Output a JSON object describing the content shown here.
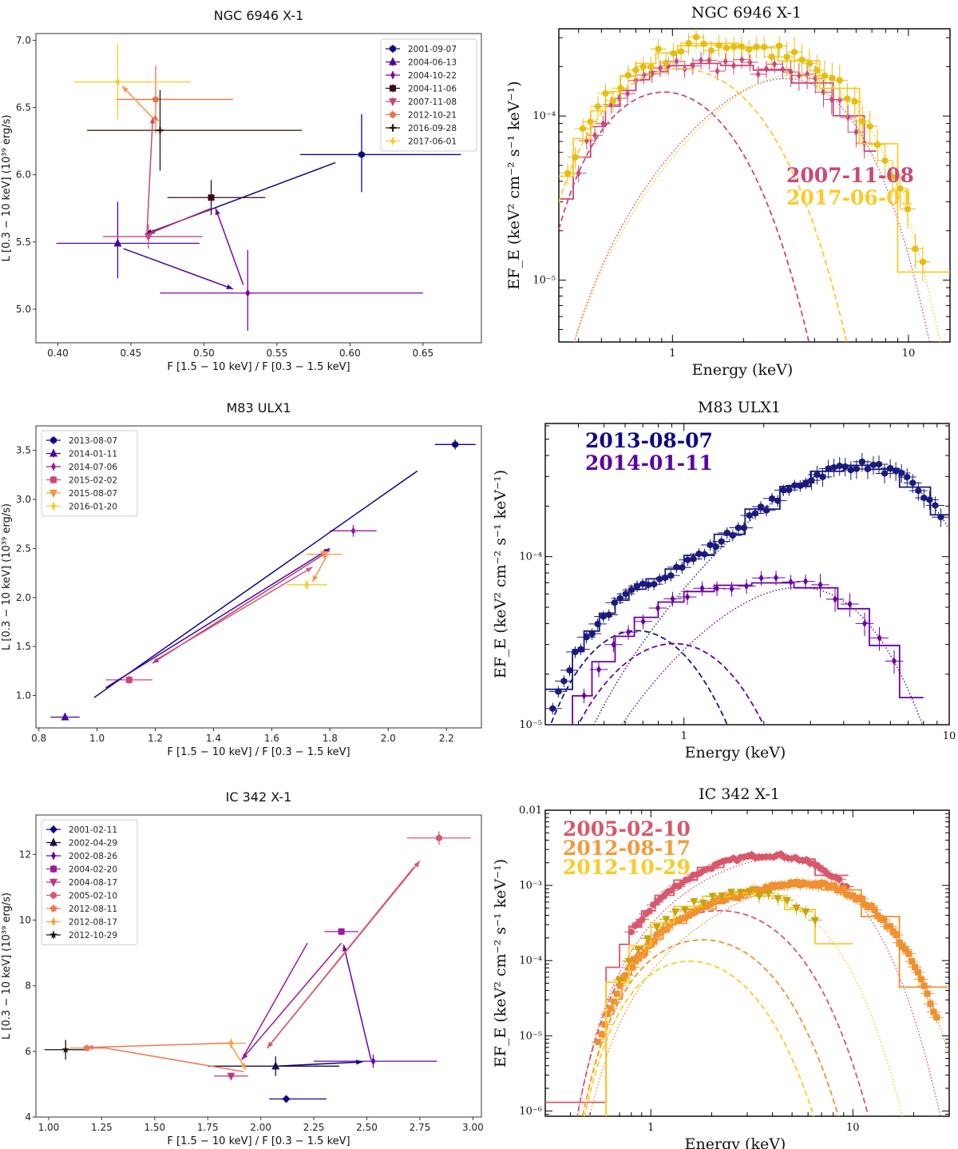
{
  "chart_data": [
    {
      "type": "scatter",
      "panel": "left-1",
      "title": "NGC 6946 X-1",
      "xlabel": "F [1.5 − 10 keV] / F [0.3 − 1.5 keV]",
      "ylabel": "L [0.3 − 10 keV] (10³⁹ erg/s)",
      "xlim": [
        0.385,
        0.69
      ],
      "ylim": [
        4.75,
        7.05
      ],
      "xticks": [
        0.4,
        0.45,
        0.5,
        0.55,
        0.6,
        0.65
      ],
      "xtick_labels": [
        "0.40",
        "0.45",
        "0.50",
        "0.55",
        "0.60",
        "0.65"
      ],
      "yticks": [
        5.0,
        5.5,
        6.0,
        6.5,
        7.0
      ],
      "ytick_labels": [
        "5.0",
        "5.5",
        "6.0",
        "6.5",
        "7.0"
      ],
      "legend": "top-right",
      "points": [
        {
          "label": "2001-09-07",
          "color": "#0d0887",
          "marker": "hexagon",
          "x": 0.608,
          "y": 6.15,
          "xerr": [
            0.042,
            0.068
          ],
          "yerr": [
            0.28,
            0.3
          ]
        },
        {
          "label": "2004-06-13",
          "color": "#4c02a1",
          "marker": "triangle",
          "x": 0.441,
          "y": 5.49,
          "xerr": [
            0.042,
            0.056
          ],
          "yerr": [
            0.26,
            0.31
          ]
        },
        {
          "label": "2004-10-22",
          "color": "#7e03a8",
          "marker": "thin-diamond",
          "x": 0.53,
          "y": 5.12,
          "xerr": [
            0.06,
            0.12
          ],
          "yerr": [
            0.28,
            0.32
          ]
        },
        {
          "label": "2004-11-06",
          "color": "#3b0a16",
          "marker": "square",
          "x": 0.505,
          "y": 5.83,
          "xerr": [
            0.03,
            0.037
          ],
          "yerr": [
            0.13,
            0.13
          ]
        },
        {
          "label": "2007-11-08",
          "color": "#cc4778",
          "marker": "triangle-down",
          "x": 0.462,
          "y": 5.54,
          "xerr": [
            0.031,
            0.037
          ],
          "yerr": [
            0.09,
            0.09
          ]
        },
        {
          "label": "2012-10-21",
          "color": "#e8754a",
          "marker": "pentagon",
          "x": 0.467,
          "y": 6.56,
          "xerr": [
            0.027,
            0.053
          ],
          "yerr": [
            0.25,
            0.25
          ]
        },
        {
          "label": "2016-09-28",
          "color": "#2a1200",
          "marker": "plus",
          "x": 0.47,
          "y": 6.33,
          "xerr": [
            0.05,
            0.097
          ],
          "yerr": [
            0.3,
            0.3
          ]
        },
        {
          "label": "2017-06-01",
          "color": "#fdca26",
          "marker": "thin-diamond",
          "x": 0.441,
          "y": 6.69,
          "xerr": [
            0.03,
            0.05
          ],
          "yerr": [
            0.28,
            0.28
          ]
        }
      ],
      "arrows": [
        {
          "from": [
            0.59,
            6.09
          ],
          "to": [
            0.46,
            5.56
          ],
          "color": "#0d0887"
        },
        {
          "from": [
            0.445,
            5.45
          ],
          "to": [
            0.52,
            5.15
          ],
          "color": "#4c02a1"
        },
        {
          "from": [
            0.527,
            5.18
          ],
          "to": [
            0.508,
            5.75
          ],
          "color": "#7e03a8"
        },
        {
          "from": [
            0.505,
            5.75
          ],
          "to": [
            0.462,
            5.56
          ],
          "color": "#b8287a"
        },
        {
          "from": [
            0.461,
            5.56
          ],
          "to": [
            0.465,
            6.43
          ],
          "color": "#cc4778"
        },
        {
          "from": [
            0.466,
            6.43
          ],
          "to": [
            0.469,
            6.4
          ],
          "color": "#e8754a"
        },
        {
          "from": [
            0.467,
            6.4
          ],
          "to": [
            0.444,
            6.66
          ],
          "color": "#f89540"
        }
      ]
    },
    {
      "type": "line",
      "panel": "right-1",
      "title": "NGC 6946 X-1",
      "xlabel": "Energy (keV)",
      "ylabel": "EF_E (keV² cm⁻² s⁻¹ keV⁻¹)",
      "xscale": "log",
      "yscale": "log",
      "xlim": [
        0.33,
        15
      ],
      "ylim": [
        4.2e-06,
        0.00034
      ],
      "xticks": [
        1,
        10
      ],
      "xtick_labels": [
        "1",
        "10"
      ],
      "yticks": [
        1e-05,
        0.0001
      ],
      "ytick_labels": [
        "10⁻⁵",
        "10⁻⁴"
      ],
      "annotations": [
        {
          "text": "2007-11-08",
          "color": "#cc4778"
        },
        {
          "text": "2017-06-01",
          "color": "#fdca26"
        }
      ],
      "series": [
        {
          "name": "2007-11-08",
          "color": "#cc4778",
          "disk_peak_keV": 0.9,
          "disk_peak": 0.00018,
          "hard_peak_keV": 3.0,
          "hard_peak": 0.000175
        },
        {
          "name": "2017-06-01",
          "color": "#fdca26",
          "disk_peak_keV": 1.0,
          "disk_peak": 0.00024,
          "hard_peak_keV": 3.2,
          "hard_peak": 0.00019
        }
      ]
    },
    {
      "type": "scatter",
      "panel": "left-2",
      "title": "M83 ULX1",
      "xlabel": "F [1.5 − 10 keV] / F [0.3 − 1.5 keV]",
      "ylabel": "L [0.3 − 10 keV] (10³⁹ erg/s)",
      "xlim": [
        0.79,
        2.32
      ],
      "ylim": [
        0.67,
        3.75
      ],
      "xticks": [
        0.8,
        1.0,
        1.2,
        1.4,
        1.6,
        1.8,
        2.0,
        2.2
      ],
      "xtick_labels": [
        "0.8",
        "1.0",
        "1.2",
        "1.4",
        "1.6",
        "1.8",
        "2.0",
        "2.2"
      ],
      "yticks": [
        1.0,
        1.5,
        2.0,
        2.5,
        3.0,
        3.5
      ],
      "ytick_labels": [
        "1.0",
        "1.5",
        "2.0",
        "2.5",
        "3.0",
        "3.5"
      ],
      "legend": "top-left",
      "points": [
        {
          "label": "2013-08-07",
          "color": "#0d0887",
          "marker": "hexagon",
          "x": 2.23,
          "y": 3.56,
          "xerr": [
            0.07,
            0.07
          ],
          "yerr": [
            0.05,
            0.05
          ]
        },
        {
          "label": "2014-01-11",
          "color": "#4c02a1",
          "marker": "triangle",
          "x": 0.89,
          "y": 0.78,
          "xerr": [
            0.05,
            0.05
          ],
          "yerr": [
            0.02,
            0.02
          ]
        },
        {
          "label": "2014-07-06",
          "color": "#9c179e",
          "marker": "thin-diamond",
          "x": 1.88,
          "y": 2.68,
          "xerr": [
            0.08,
            0.08
          ],
          "yerr": [
            0.06,
            0.06
          ]
        },
        {
          "label": "2015-02-02",
          "color": "#cc4778",
          "marker": "square",
          "x": 1.11,
          "y": 1.16,
          "xerr": [
            0.08,
            0.08
          ],
          "yerr": [
            0.04,
            0.04
          ]
        },
        {
          "label": "2015-08-07",
          "color": "#f89540",
          "marker": "triangle-down",
          "x": 1.78,
          "y": 2.44,
          "xerr": [
            0.06,
            0.06
          ],
          "yerr": [
            0.04,
            0.04
          ]
        },
        {
          "label": "2016-01-20",
          "color": "#fdca26",
          "marker": "thin-diamond",
          "x": 1.72,
          "y": 2.13,
          "xerr": [
            0.07,
            0.07
          ],
          "yerr": [
            0.05,
            0.05
          ]
        }
      ],
      "arrows": [
        {
          "from": [
            2.1,
            3.29
          ],
          "to": [
            0.99,
            0.98
          ],
          "color": "#0d0887",
          "head": false
        },
        {
          "from": [
            1.03,
            1.08
          ],
          "to": [
            1.8,
            2.5
          ],
          "color": "#4c02a1"
        },
        {
          "from": [
            1.8,
            2.48
          ],
          "to": [
            1.19,
            1.33
          ],
          "color": "#b5367a"
        },
        {
          "from": [
            1.2,
            1.36
          ],
          "to": [
            1.74,
            2.31
          ],
          "color": "#d8576b"
        },
        {
          "from": [
            1.79,
            2.43
          ],
          "to": [
            1.74,
            2.16
          ],
          "color": "#f89540"
        }
      ]
    },
    {
      "type": "line",
      "panel": "right-2",
      "title": "M83 ULX1",
      "xlabel": "Energy (keV)",
      "ylabel": "EF_E (keV² cm⁻² s⁻¹ keV⁻¹)",
      "xscale": "log",
      "yscale": "log",
      "xlim": [
        0.3,
        10
      ],
      "ylim": [
        1e-05,
        0.00062
      ],
      "xticks": [
        1,
        10
      ],
      "xtick_labels": [
        "1",
        "10"
      ],
      "yticks": [
        1e-05,
        0.0001
      ],
      "ytick_labels": [
        "10⁻⁵",
        "10⁻⁴"
      ],
      "annotations": [
        {
          "text": "2013-08-07",
          "color": "#0d0887"
        },
        {
          "text": "2014-01-11",
          "color": "#5b02a3"
        }
      ],
      "series": [
        {
          "name": "2013-08-07",
          "color": "#1a1a7e",
          "data_peak_keV": 4.5,
          "data_peak": 0.00039
        },
        {
          "name": "2014-01-11",
          "color": "#6a00a8",
          "data_peak_keV": 2.5,
          "data_peak": 6.8e-05
        }
      ]
    },
    {
      "type": "scatter",
      "panel": "left-3",
      "title": "IC 342 X-1",
      "xlabel": "F [1.5 − 10 keV] / F [0.3 − 1.5 keV]",
      "ylabel": "L [0.3 − 10 keV] (10³⁹ erg/s)",
      "xlim": [
        0.94,
        3.04
      ],
      "ylim": [
        4.0,
        13.2
      ],
      "xticks": [
        1.0,
        1.25,
        1.5,
        1.75,
        2.0,
        2.25,
        2.5,
        2.75,
        3.0
      ],
      "xtick_labels": [
        "1.00",
        "1.25",
        "1.50",
        "1.75",
        "2.00",
        "2.25",
        "2.50",
        "2.75",
        "3.00"
      ],
      "yticks": [
        4,
        6,
        8,
        10,
        12
      ],
      "ytick_labels": [
        "4",
        "6",
        "8",
        "10",
        "12"
      ],
      "legend": "top-left",
      "points": [
        {
          "label": "2001-02-11",
          "color": "#0d0887",
          "marker": "diamond",
          "x": 2.12,
          "y": 4.55,
          "xerr": [
            0.08,
            0.19
          ],
          "yerr": [
            0.05,
            0.05
          ]
        },
        {
          "label": "2002-04-29",
          "color": "#1f0c48",
          "marker": "triangle",
          "x": 2.07,
          "y": 5.55,
          "xerr": [
            0.32,
            0.3
          ],
          "yerr": [
            0.3,
            0.3
          ]
        },
        {
          "label": "2002-08-26",
          "color": "#6a00a8",
          "marker": "thin-diamond",
          "x": 2.53,
          "y": 5.7,
          "xerr": [
            0.28,
            0.3
          ],
          "yerr": [
            0.2,
            0.2
          ]
        },
        {
          "label": "2004-02-20",
          "color": "#9c179e",
          "marker": "square",
          "x": 2.38,
          "y": 9.65,
          "xerr": [
            0.08,
            0.08
          ],
          "yerr": [
            0.1,
            0.1
          ]
        },
        {
          "label": "2004-08-17",
          "color": "#bd3786",
          "marker": "triangle-down",
          "x": 1.86,
          "y": 5.25,
          "xerr": [
            0.08,
            0.08
          ],
          "yerr": [
            0.1,
            0.1
          ]
        },
        {
          "label": "2005-02-10",
          "color": "#d8576b",
          "marker": "hexagon",
          "x": 2.84,
          "y": 12.5,
          "xerr": [
            0.15,
            0.15
          ],
          "yerr": [
            0.2,
            0.2
          ]
        },
        {
          "label": "2012-08-11",
          "color": "#ed7953",
          "marker": "pentagon",
          "x": 1.18,
          "y": 6.1,
          "xerr": [
            0.08,
            0.08
          ],
          "yerr": [
            0.1,
            0.1
          ]
        },
        {
          "label": "2012-08-17",
          "color": "#fb9f3a",
          "marker": "thin-diamond",
          "x": 1.86,
          "y": 6.25,
          "xerr": [
            0.07,
            0.07
          ],
          "yerr": [
            0.15,
            0.15
          ]
        },
        {
          "label": "2012-10-29",
          "color": "#1a1200",
          "marker": "star",
          "x": 1.08,
          "y": 6.05,
          "xerr": [
            0.1,
            0.1
          ],
          "yerr": [
            0.3,
            0.3
          ]
        }
      ],
      "arrows": [
        {
          "from": [
            2.07,
            5.55
          ],
          "to": [
            2.48,
            5.68
          ],
          "color": "#0d0887"
        },
        {
          "from": [
            2.52,
            5.74
          ],
          "to": [
            2.39,
            9.25
          ],
          "color": "#6a00a8"
        },
        {
          "from": [
            2.38,
            9.3
          ],
          "to": [
            1.91,
            5.75
          ],
          "color": "#9c179e"
        },
        {
          "from": [
            2.22,
            9.3
          ],
          "to": [
            1.91,
            5.75
          ],
          "color": "#9c179e",
          "head": false
        },
        {
          "from": [
            2.03,
            6.1
          ],
          "to": [
            2.75,
            11.8
          ],
          "color": "#d8576b"
        },
        {
          "from": [
            2.72,
            11.6
          ],
          "to": [
            2.03,
            6.1
          ],
          "color": "#d8576b"
        },
        {
          "from": [
            1.92,
            5.38
          ],
          "to": [
            1.25,
            6.12
          ],
          "color": "#ed7953",
          "head": false
        },
        {
          "from": [
            1.85,
            6.25
          ],
          "to": [
            1.18,
            6.12
          ],
          "color": "#ed7953"
        },
        {
          "from": [
            1.86,
            6.18
          ],
          "to": [
            1.93,
            5.45
          ],
          "color": "#fb9f3a"
        }
      ]
    },
    {
      "type": "line",
      "panel": "right-3",
      "title": "IC 342 X-1",
      "xlabel": "Energy (keV)",
      "ylabel": "EF_E (keV² cm⁻² s⁻¹ keV⁻¹)",
      "xscale": "log",
      "yscale": "log",
      "xlim": [
        0.3,
        30
      ],
      "ylim": [
        8.5e-07,
        0.01
      ],
      "xticks": [
        1,
        10
      ],
      "xtick_labels": [
        "1",
        "10"
      ],
      "yticks": [
        1e-06,
        1e-05,
        0.0001,
        0.001,
        0.01
      ],
      "ytick_labels": [
        "10⁻⁶",
        "10⁻⁵",
        "10⁻⁴",
        "10⁻³",
        "0.01"
      ],
      "annotations": [
        {
          "text": "2005-02-10",
          "color": "#d8576b"
        },
        {
          "text": "2012-08-17",
          "color": "#f59a3a"
        },
        {
          "text": "2012-10-29",
          "color": "#fdca26"
        }
      ],
      "series": [
        {
          "name": "2005-02-10",
          "color": "#d8576b",
          "data_peak_keV": 4.0,
          "data_peak": 0.0025
        },
        {
          "name": "2012-08-17",
          "color": "#f0902e",
          "data_peak_keV": 5.0,
          "data_peak": 0.0011
        },
        {
          "name": "2012-10-29",
          "color": "#fdca26",
          "data_peak_keV": 3.0,
          "data_peak": 0.00085
        }
      ]
    }
  ]
}
